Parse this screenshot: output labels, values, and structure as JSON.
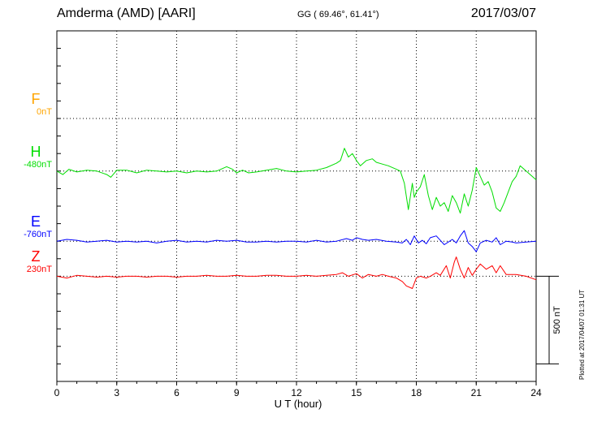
{
  "header": {
    "station": "Amderma (AMD)  [AARI]",
    "coords": "GG ( 69.46°,  61.41°)",
    "date": "2017/03/07"
  },
  "plotted": "Plotted at 2017/04/07 01:31  UT",
  "chart_data": {
    "type": "line",
    "xlabel": "U T (hour)",
    "xlim": [
      0,
      24
    ],
    "xticks": [
      "0",
      "3",
      "6",
      "9",
      "12",
      "15",
      "18",
      "21",
      "24"
    ],
    "ylim_nT": [
      -1000,
      1000
    ],
    "scale_bar": {
      "label": "500 nT",
      "value_nT": 500
    },
    "grid": true,
    "series": [
      {
        "name": "F",
        "baseline_label": "0nT",
        "color": "#ffa500",
        "offset_nT": 500,
        "points": []
      },
      {
        "name": "H",
        "baseline_label": "-480nT",
        "color": "#00dd00",
        "offset_nT": 200,
        "points": [
          [
            0,
            0
          ],
          [
            0.3,
            -20
          ],
          [
            0.6,
            10
          ],
          [
            1,
            -5
          ],
          [
            1.5,
            5
          ],
          [
            2,
            0
          ],
          [
            2.5,
            -20
          ],
          [
            2.7,
            -35
          ],
          [
            3,
            5
          ],
          [
            3.5,
            5
          ],
          [
            4,
            -10
          ],
          [
            4.5,
            5
          ],
          [
            5,
            0
          ],
          [
            5.5,
            -5
          ],
          [
            6,
            0
          ],
          [
            6.5,
            -10
          ],
          [
            7,
            0
          ],
          [
            7.5,
            -5
          ],
          [
            8,
            0
          ],
          [
            8.5,
            25
          ],
          [
            8.8,
            10
          ],
          [
            9,
            -10
          ],
          [
            9.3,
            5
          ],
          [
            9.6,
            -10
          ],
          [
            10,
            -5
          ],
          [
            10.5,
            5
          ],
          [
            11,
            15
          ],
          [
            11.5,
            0
          ],
          [
            12,
            -5
          ],
          [
            12.5,
            0
          ],
          [
            13,
            5
          ],
          [
            13.5,
            20
          ],
          [
            14,
            45
          ],
          [
            14.2,
            60
          ],
          [
            14.4,
            130
          ],
          [
            14.6,
            80
          ],
          [
            14.8,
            100
          ],
          [
            15,
            60
          ],
          [
            15.2,
            30
          ],
          [
            15.5,
            60
          ],
          [
            15.8,
            70
          ],
          [
            16,
            50
          ],
          [
            16.3,
            40
          ],
          [
            16.6,
            30
          ],
          [
            17,
            10
          ],
          [
            17.2,
            0
          ],
          [
            17.4,
            -70
          ],
          [
            17.6,
            -220
          ],
          [
            17.8,
            -70
          ],
          [
            17.9,
            -150
          ],
          [
            18,
            -120
          ],
          [
            18.2,
            -90
          ],
          [
            18.4,
            -20
          ],
          [
            18.6,
            -140
          ],
          [
            18.8,
            -220
          ],
          [
            19,
            -150
          ],
          [
            19.2,
            -200
          ],
          [
            19.4,
            -180
          ],
          [
            19.6,
            -230
          ],
          [
            19.8,
            -140
          ],
          [
            20,
            -180
          ],
          [
            20.2,
            -240
          ],
          [
            20.4,
            -130
          ],
          [
            20.6,
            -200
          ],
          [
            20.8,
            -110
          ],
          [
            21,
            20
          ],
          [
            21.2,
            -30
          ],
          [
            21.4,
            -80
          ],
          [
            21.6,
            -60
          ],
          [
            21.8,
            -120
          ],
          [
            22,
            -210
          ],
          [
            22.2,
            -230
          ],
          [
            22.4,
            -180
          ],
          [
            22.6,
            -120
          ],
          [
            22.8,
            -60
          ],
          [
            23,
            -30
          ],
          [
            23.2,
            30
          ],
          [
            23.5,
            0
          ],
          [
            23.8,
            -30
          ],
          [
            24,
            -50
          ]
        ]
      },
      {
        "name": "E",
        "baseline_label": "-760nT",
        "color": "#0000ff",
        "offset_nT": -200,
        "points": [
          [
            0,
            0
          ],
          [
            0.5,
            10
          ],
          [
            1,
            5
          ],
          [
            1.5,
            -5
          ],
          [
            2,
            0
          ],
          [
            2.5,
            5
          ],
          [
            3,
            -5
          ],
          [
            3.5,
            0
          ],
          [
            4,
            -5
          ],
          [
            4.5,
            0
          ],
          [
            5,
            -10
          ],
          [
            5.5,
            0
          ],
          [
            6,
            5
          ],
          [
            6.5,
            -5
          ],
          [
            7,
            0
          ],
          [
            7.5,
            -5
          ],
          [
            8,
            5
          ],
          [
            8.5,
            0
          ],
          [
            9,
            5
          ],
          [
            9.5,
            -5
          ],
          [
            10,
            -5
          ],
          [
            10.5,
            0
          ],
          [
            11,
            -5
          ],
          [
            11.5,
            0
          ],
          [
            12,
            0
          ],
          [
            12.5,
            -5
          ],
          [
            13,
            5
          ],
          [
            13.5,
            -5
          ],
          [
            14,
            0
          ],
          [
            14.5,
            15
          ],
          [
            14.8,
            5
          ],
          [
            15,
            20
          ],
          [
            15.3,
            10
          ],
          [
            15.6,
            5
          ],
          [
            16,
            10
          ],
          [
            16.5,
            0
          ],
          [
            17,
            -5
          ],
          [
            17.3,
            -10
          ],
          [
            17.5,
            10
          ],
          [
            17.7,
            -20
          ],
          [
            17.9,
            30
          ],
          [
            18.1,
            -10
          ],
          [
            18.3,
            5
          ],
          [
            18.5,
            -15
          ],
          [
            18.7,
            20
          ],
          [
            19,
            30
          ],
          [
            19.2,
            5
          ],
          [
            19.4,
            -20
          ],
          [
            19.6,
            -5
          ],
          [
            19.8,
            10
          ],
          [
            20,
            -10
          ],
          [
            20.2,
            30
          ],
          [
            20.4,
            60
          ],
          [
            20.6,
            -10
          ],
          [
            20.8,
            -30
          ],
          [
            21,
            -60
          ],
          [
            21.2,
            -10
          ],
          [
            21.5,
            5
          ],
          [
            21.8,
            -5
          ],
          [
            22,
            20
          ],
          [
            22.2,
            -20
          ],
          [
            22.5,
            0
          ],
          [
            22.8,
            -5
          ],
          [
            23,
            -10
          ],
          [
            23.5,
            -5
          ],
          [
            24,
            0
          ]
        ]
      },
      {
        "name": "Z",
        "baseline_label": "230nT",
        "color": "#ff0000",
        "offset_nT": -400,
        "points": [
          [
            0,
            0
          ],
          [
            0.5,
            -10
          ],
          [
            1,
            5
          ],
          [
            1.5,
            0
          ],
          [
            2,
            -5
          ],
          [
            2.5,
            0
          ],
          [
            3,
            -5
          ],
          [
            3.5,
            0
          ],
          [
            4,
            0
          ],
          [
            4.5,
            -5
          ],
          [
            5,
            0
          ],
          [
            5.5,
            0
          ],
          [
            6,
            -5
          ],
          [
            6.5,
            0
          ],
          [
            7,
            0
          ],
          [
            7.5,
            5
          ],
          [
            8,
            0
          ],
          [
            8.5,
            0
          ],
          [
            9,
            5
          ],
          [
            9.5,
            0
          ],
          [
            10,
            0
          ],
          [
            10.5,
            5
          ],
          [
            11,
            5
          ],
          [
            11.5,
            0
          ],
          [
            12,
            0
          ],
          [
            12.5,
            5
          ],
          [
            13,
            0
          ],
          [
            13.5,
            5
          ],
          [
            14,
            10
          ],
          [
            14.3,
            20
          ],
          [
            14.6,
            0
          ],
          [
            15,
            15
          ],
          [
            15.3,
            -10
          ],
          [
            15.6,
            10
          ],
          [
            16,
            0
          ],
          [
            16.3,
            10
          ],
          [
            16.6,
            0
          ],
          [
            17,
            -10
          ],
          [
            17.3,
            -30
          ],
          [
            17.5,
            -55
          ],
          [
            17.8,
            -70
          ],
          [
            18,
            -10
          ],
          [
            18.2,
            0
          ],
          [
            18.5,
            -10
          ],
          [
            18.7,
            0
          ],
          [
            19,
            20
          ],
          [
            19.2,
            5
          ],
          [
            19.5,
            60
          ],
          [
            19.7,
            -10
          ],
          [
            19.9,
            80
          ],
          [
            20,
            110
          ],
          [
            20.2,
            40
          ],
          [
            20.4,
            -10
          ],
          [
            20.6,
            50
          ],
          [
            20.8,
            5
          ],
          [
            21,
            40
          ],
          [
            21.2,
            70
          ],
          [
            21.5,
            40
          ],
          [
            21.8,
            60
          ],
          [
            22,
            20
          ],
          [
            22.2,
            60
          ],
          [
            22.5,
            10
          ],
          [
            23,
            10
          ],
          [
            23.5,
            0
          ],
          [
            24,
            -20
          ]
        ]
      }
    ]
  }
}
